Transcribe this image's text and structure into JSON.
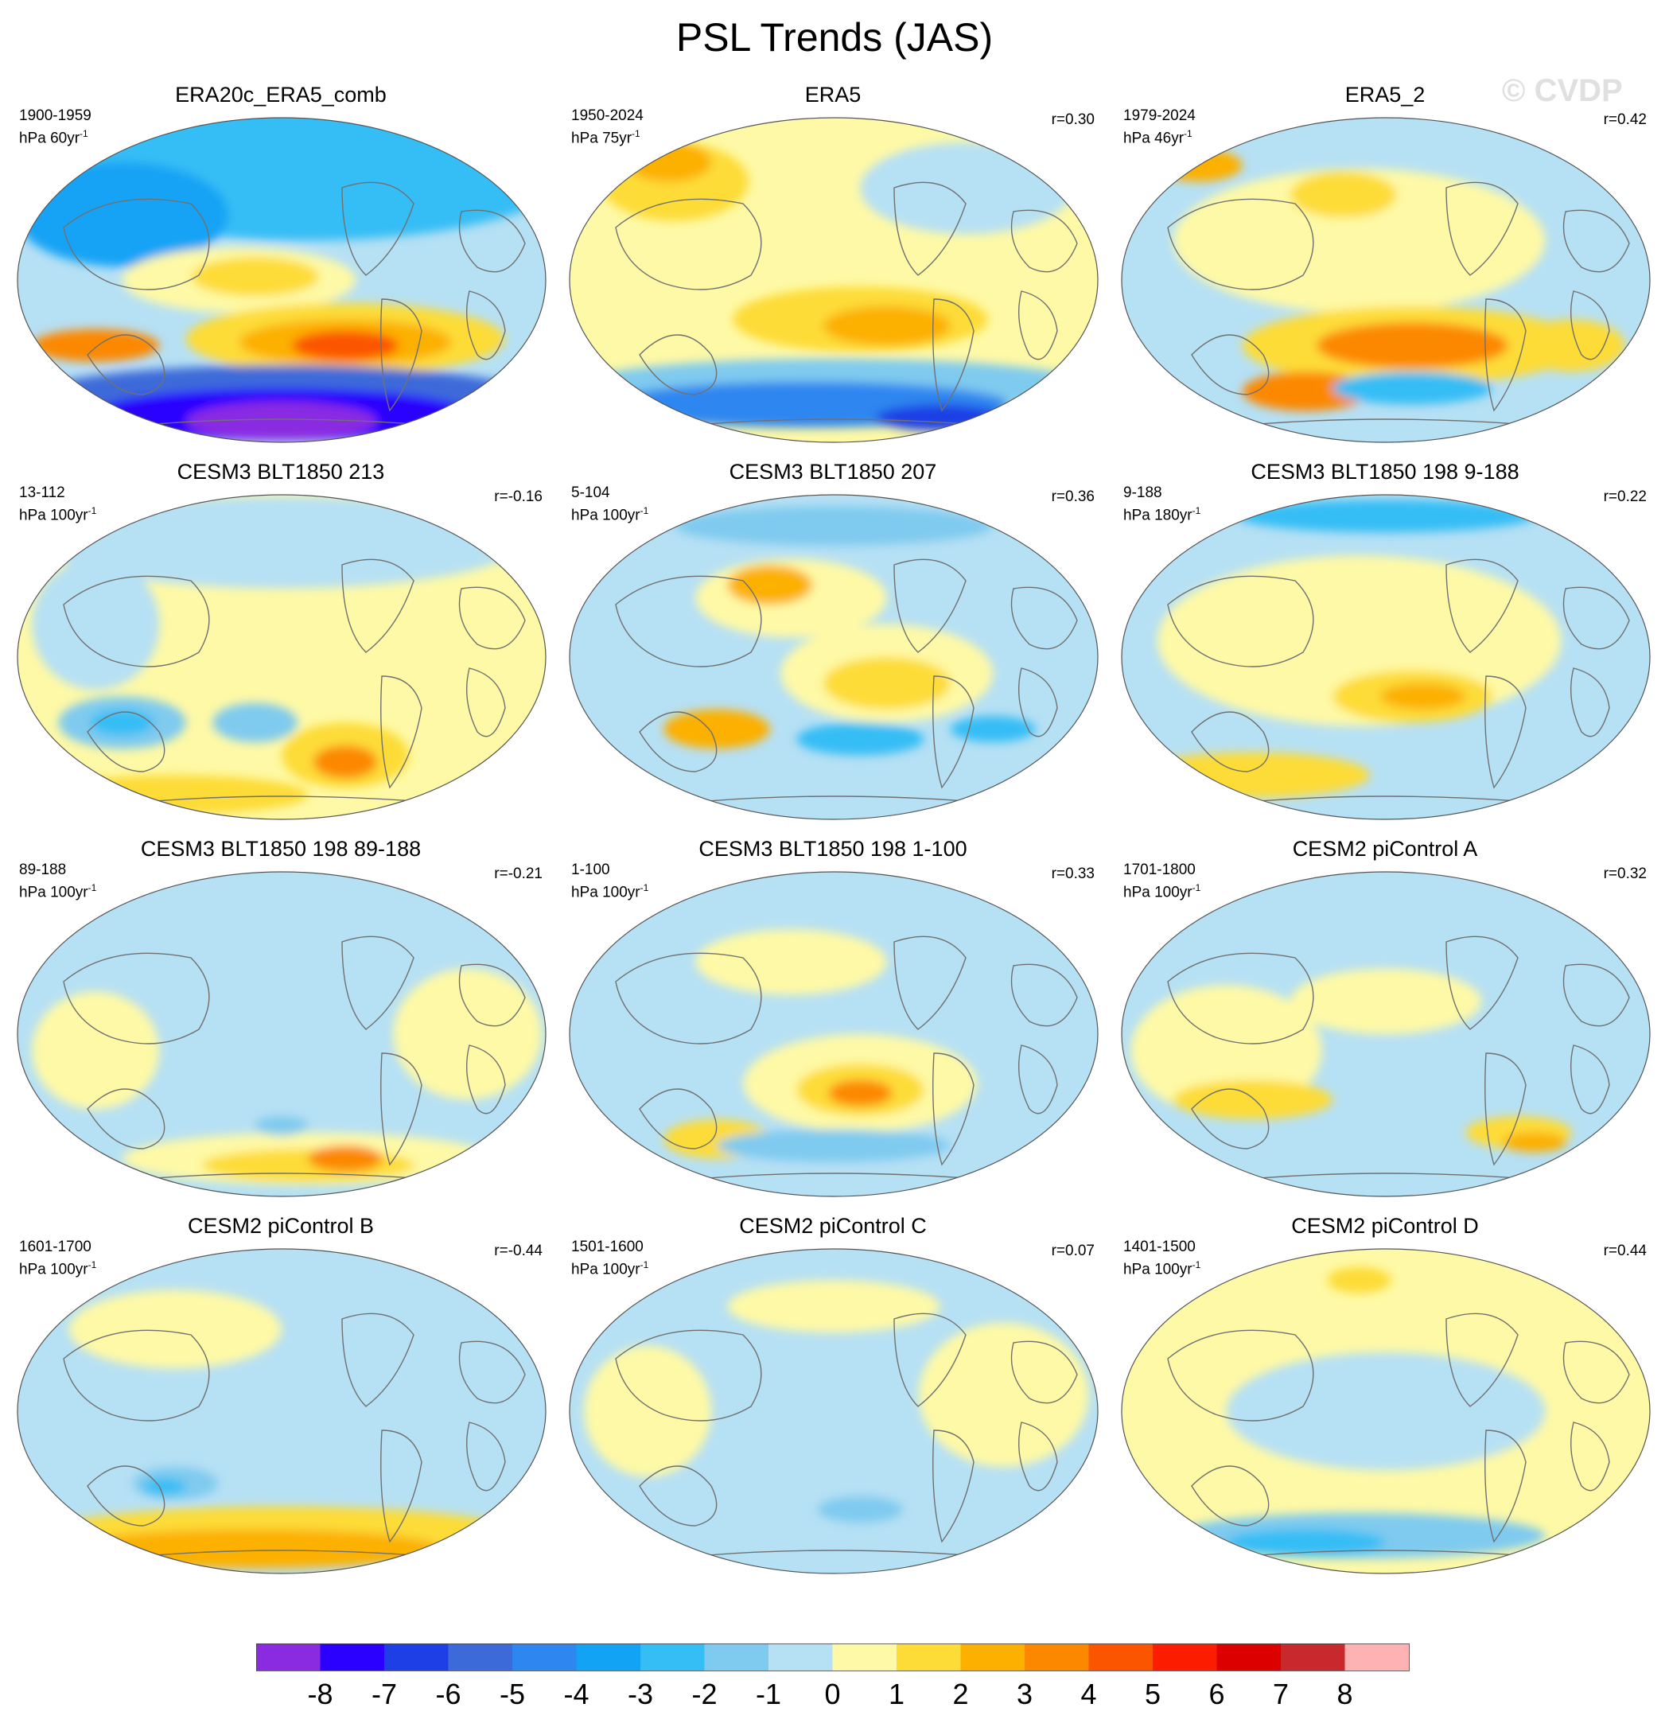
{
  "title": "PSL Trends (JAS)",
  "watermark": "© CVDP",
  "colors": {
    "map_edge": "#555555",
    "coast": "#707070"
  },
  "chart_data": {
    "type": "heatmap",
    "projection": "global map (ellipse), Pacific-centered",
    "colorbar": {
      "tick_labels": [
        "-8",
        "-7",
        "-6",
        "-5",
        "-4",
        "-3",
        "-2",
        "-1",
        "0",
        "1",
        "2",
        "3",
        "4",
        "5",
        "6",
        "7",
        "8"
      ],
      "colors": [
        "#8a2be2",
        "#2b00ff",
        "#1f3fe6",
        "#3c6ad9",
        "#2e86f0",
        "#12a3f5",
        "#35bdf5",
        "#7fcaef",
        "#b6e0f4",
        "#fef9a6",
        "#fddc38",
        "#fcb000",
        "#fc8800",
        "#fc5500",
        "#fc1c00",
        "#dc0000",
        "#c8292c",
        "#fdb3b4"
      ]
    },
    "panels": [
      {
        "name": "ERA20c_ERA5_comb",
        "period": "1900-1959",
        "units": "hPa 60yr",
        "units_sup": "-1",
        "r": "",
        "background": "#b6e0f4",
        "blobs": [
          {
            "lon": 50,
            "lat": 0.88,
            "rx": 0.38,
            "ry": 0.14,
            "color": "#8a2be2"
          },
          {
            "lon": 0.55,
            "lat": 0.84,
            "rx": 0.5,
            "ry": 0.22,
            "color": "#35bdf5"
          },
          {
            "lon": 0.2,
            "lat": 0.7,
            "rx": 0.2,
            "ry": 0.16,
            "color": "#12a3f5"
          },
          {
            "lon": 0.42,
            "lat": 0.5,
            "rx": 0.22,
            "ry": 0.1,
            "color": "#fef9a6"
          },
          {
            "lon": 0.45,
            "lat": 0.51,
            "rx": 0.12,
            "ry": 0.06,
            "color": "#fddc38"
          },
          {
            "lon": 0.62,
            "lat": 0.32,
            "rx": 0.3,
            "ry": 0.11,
            "color": "#fddc38"
          },
          {
            "lon": 0.62,
            "lat": 0.31,
            "rx": 0.2,
            "ry": 0.07,
            "color": "#fcb000"
          },
          {
            "lon": 0.62,
            "lat": 0.3,
            "rx": 0.1,
            "ry": 0.045,
            "color": "#fc5500"
          },
          {
            "lon": 0.15,
            "lat": 0.3,
            "rx": 0.12,
            "ry": 0.05,
            "color": "#fc8800"
          },
          {
            "lon": 0.5,
            "lat": 0.15,
            "rx": 0.46,
            "ry": 0.09,
            "color": "#3c6ad9"
          },
          {
            "lon": 0.5,
            "lat": 0.09,
            "rx": 0.36,
            "ry": 0.08,
            "color": "#2b00ff"
          },
          {
            "lon": 0.5,
            "lat": 0.07,
            "rx": 0.18,
            "ry": 0.06,
            "color": "#8a2be2"
          }
        ]
      },
      {
        "name": "ERA5",
        "period": "1950-2024",
        "units": "hPa 75yr",
        "units_sup": "-1",
        "r": "r=0.30",
        "background": "#fef9a6",
        "blobs": [
          {
            "lon": 0.2,
            "lat": 0.8,
            "rx": 0.14,
            "ry": 0.12,
            "color": "#fddc38"
          },
          {
            "lon": 0.19,
            "lat": 0.86,
            "rx": 0.08,
            "ry": 0.06,
            "color": "#fcb000"
          },
          {
            "lon": 0.75,
            "lat": 0.78,
            "rx": 0.2,
            "ry": 0.14,
            "color": "#b6e0f4"
          },
          {
            "lon": 0.55,
            "lat": 0.38,
            "rx": 0.24,
            "ry": 0.1,
            "color": "#fddc38"
          },
          {
            "lon": 0.6,
            "lat": 0.36,
            "rx": 0.12,
            "ry": 0.06,
            "color": "#fcb000"
          },
          {
            "lon": 0.5,
            "lat": 0.18,
            "rx": 0.48,
            "ry": 0.08,
            "color": "#7fcaef"
          },
          {
            "lon": 0.45,
            "lat": 0.12,
            "rx": 0.38,
            "ry": 0.07,
            "color": "#2e86f0"
          },
          {
            "lon": 0.7,
            "lat": 0.08,
            "rx": 0.12,
            "ry": 0.04,
            "color": "#1f3fe6"
          }
        ]
      },
      {
        "name": "ERA5_2",
        "period": "1979-2024",
        "units": "hPa 46yr",
        "units_sup": "-1",
        "r": "r=0.42",
        "background": "#b6e0f4",
        "blobs": [
          {
            "lon": 0.45,
            "lat": 0.62,
            "rx": 0.35,
            "ry": 0.22,
            "color": "#fef9a6"
          },
          {
            "lon": 0.42,
            "lat": 0.76,
            "rx": 0.1,
            "ry": 0.07,
            "color": "#fddc38"
          },
          {
            "lon": 0.55,
            "lat": 0.3,
            "rx": 0.32,
            "ry": 0.12,
            "color": "#fddc38"
          },
          {
            "lon": 0.55,
            "lat": 0.3,
            "rx": 0.18,
            "ry": 0.07,
            "color": "#fc8800"
          },
          {
            "lon": 0.15,
            "lat": 0.85,
            "rx": 0.08,
            "ry": 0.05,
            "color": "#fcb000"
          },
          {
            "lon": 0.85,
            "lat": 0.3,
            "rx": 0.1,
            "ry": 0.08,
            "color": "#fddc38"
          },
          {
            "lon": 0.35,
            "lat": 0.16,
            "rx": 0.12,
            "ry": 0.06,
            "color": "#fc8800"
          },
          {
            "lon": 0.55,
            "lat": 0.17,
            "rx": 0.15,
            "ry": 0.05,
            "color": "#35bdf5"
          }
        ]
      },
      {
        "name": "CESM3 BLT1850 213",
        "period": "13-112",
        "units": "hPa 100yr",
        "units_sup": "-1",
        "r": "r=-0.16",
        "background": "#fef9a6",
        "blobs": [
          {
            "lon": 0.5,
            "lat": 0.85,
            "rx": 0.45,
            "ry": 0.14,
            "color": "#b6e0f4"
          },
          {
            "lon": 0.15,
            "lat": 0.6,
            "rx": 0.12,
            "ry": 0.2,
            "color": "#b6e0f4"
          },
          {
            "lon": 0.2,
            "lat": 0.3,
            "rx": 0.12,
            "ry": 0.08,
            "color": "#7fcaef"
          },
          {
            "lon": 0.2,
            "lat": 0.3,
            "rx": 0.06,
            "ry": 0.04,
            "color": "#35bdf5"
          },
          {
            "lon": 0.45,
            "lat": 0.3,
            "rx": 0.08,
            "ry": 0.06,
            "color": "#7fcaef"
          },
          {
            "lon": 0.62,
            "lat": 0.2,
            "rx": 0.12,
            "ry": 0.1,
            "color": "#fddc38"
          },
          {
            "lon": 0.62,
            "lat": 0.18,
            "rx": 0.06,
            "ry": 0.05,
            "color": "#fc8800"
          },
          {
            "lon": 0.3,
            "lat": 0.08,
            "rx": 0.25,
            "ry": 0.06,
            "color": "#fddc38"
          }
        ]
      },
      {
        "name": "CESM3 BLT1850 207",
        "period": "5-104",
        "units": "hPa 100yr",
        "units_sup": "-1",
        "r": "r=0.36",
        "background": "#b6e0f4",
        "blobs": [
          {
            "lon": 0.42,
            "lat": 0.68,
            "rx": 0.18,
            "ry": 0.12,
            "color": "#fef9a6"
          },
          {
            "lon": 0.38,
            "lat": 0.72,
            "rx": 0.08,
            "ry": 0.06,
            "color": "#fcb000"
          },
          {
            "lon": 0.6,
            "lat": 0.45,
            "rx": 0.2,
            "ry": 0.15,
            "color": "#fef9a6"
          },
          {
            "lon": 0.6,
            "lat": 0.42,
            "rx": 0.12,
            "ry": 0.08,
            "color": "#fddc38"
          },
          {
            "lon": 0.28,
            "lat": 0.28,
            "rx": 0.1,
            "ry": 0.06,
            "color": "#fcb000"
          },
          {
            "lon": 0.55,
            "lat": 0.25,
            "rx": 0.12,
            "ry": 0.05,
            "color": "#35bdf5"
          },
          {
            "lon": 0.8,
            "lat": 0.28,
            "rx": 0.08,
            "ry": 0.04,
            "color": "#35bdf5"
          },
          {
            "lon": 0.5,
            "lat": 0.9,
            "rx": 0.3,
            "ry": 0.06,
            "color": "#7fcaef"
          }
        ]
      },
      {
        "name": "CESM3 BLT1850 198 9-188",
        "period": "9-188",
        "units": "hPa 180yr",
        "units_sup": "-1",
        "r": "r=0.22",
        "background": "#b6e0f4",
        "blobs": [
          {
            "lon": 0.45,
            "lat": 0.55,
            "rx": 0.38,
            "ry": 0.26,
            "color": "#fef9a6"
          },
          {
            "lon": 0.55,
            "lat": 0.38,
            "rx": 0.15,
            "ry": 0.08,
            "color": "#fddc38"
          },
          {
            "lon": 0.57,
            "lat": 0.38,
            "rx": 0.08,
            "ry": 0.04,
            "color": "#fcb000"
          },
          {
            "lon": 0.25,
            "lat": 0.14,
            "rx": 0.22,
            "ry": 0.07,
            "color": "#fddc38"
          },
          {
            "lon": 0.5,
            "lat": 0.93,
            "rx": 0.28,
            "ry": 0.05,
            "color": "#35bdf5"
          }
        ]
      },
      {
        "name": "CESM3 BLT1850 198 89-188",
        "period": "89-188",
        "units": "hPa 100yr",
        "units_sup": "-1",
        "r": "r=-0.21",
        "background": "#b6e0f4",
        "blobs": [
          {
            "lon": 0.15,
            "lat": 0.45,
            "rx": 0.12,
            "ry": 0.18,
            "color": "#fef9a6"
          },
          {
            "lon": 0.85,
            "lat": 0.5,
            "rx": 0.14,
            "ry": 0.2,
            "color": "#fef9a6"
          },
          {
            "lon": 0.55,
            "lat": 0.12,
            "rx": 0.35,
            "ry": 0.08,
            "color": "#fef9a6"
          },
          {
            "lon": 0.55,
            "lat": 0.1,
            "rx": 0.2,
            "ry": 0.05,
            "color": "#fddc38"
          },
          {
            "lon": 0.62,
            "lat": 0.12,
            "rx": 0.07,
            "ry": 0.04,
            "color": "#fc8800"
          },
          {
            "lon": 0.5,
            "lat": 0.22,
            "rx": 0.05,
            "ry": 0.03,
            "color": "#7fcaef"
          }
        ]
      },
      {
        "name": "CESM3 BLT1850 198 1-100",
        "period": "1-100",
        "units": "hPa 100yr",
        "units_sup": "-1",
        "r": "r=0.33",
        "background": "#b6e0f4",
        "blobs": [
          {
            "lon": 0.42,
            "lat": 0.72,
            "rx": 0.18,
            "ry": 0.1,
            "color": "#fef9a6"
          },
          {
            "lon": 0.55,
            "lat": 0.35,
            "rx": 0.22,
            "ry": 0.15,
            "color": "#fef9a6"
          },
          {
            "lon": 0.55,
            "lat": 0.33,
            "rx": 0.12,
            "ry": 0.08,
            "color": "#fddc38"
          },
          {
            "lon": 0.55,
            "lat": 0.32,
            "rx": 0.06,
            "ry": 0.04,
            "color": "#fc8800"
          },
          {
            "lon": 0.28,
            "lat": 0.18,
            "rx": 0.1,
            "ry": 0.06,
            "color": "#fddc38"
          },
          {
            "lon": 0.5,
            "lat": 0.16,
            "rx": 0.22,
            "ry": 0.05,
            "color": "#7fcaef"
          }
        ]
      },
      {
        "name": "CESM2 piControl A",
        "period": "1701-1800",
        "units": "hPa 100yr",
        "units_sup": "-1",
        "r": "r=0.32",
        "background": "#b6e0f4",
        "blobs": [
          {
            "lon": 0.2,
            "lat": 0.45,
            "rx": 0.18,
            "ry": 0.2,
            "color": "#fef9a6"
          },
          {
            "lon": 0.25,
            "lat": 0.3,
            "rx": 0.15,
            "ry": 0.06,
            "color": "#fddc38"
          },
          {
            "lon": 0.75,
            "lat": 0.2,
            "rx": 0.1,
            "ry": 0.05,
            "color": "#fddc38"
          },
          {
            "lon": 0.78,
            "lat": 0.17,
            "rx": 0.06,
            "ry": 0.03,
            "color": "#fcb000"
          },
          {
            "lon": 0.5,
            "lat": 0.6,
            "rx": 0.18,
            "ry": 0.1,
            "color": "#fef9a6"
          }
        ]
      },
      {
        "name": "CESM2 piControl B",
        "period": "1601-1700",
        "units": "hPa 100yr",
        "units_sup": "-1",
        "r": "r=-0.44",
        "background": "#b6e0f4",
        "blobs": [
          {
            "lon": 0.3,
            "lat": 0.75,
            "rx": 0.2,
            "ry": 0.12,
            "color": "#fef9a6"
          },
          {
            "lon": 0.5,
            "lat": 0.12,
            "rx": 0.46,
            "ry": 0.09,
            "color": "#fddc38"
          },
          {
            "lon": 0.45,
            "lat": 0.08,
            "rx": 0.35,
            "ry": 0.06,
            "color": "#fcb000"
          },
          {
            "lon": 0.3,
            "lat": 0.28,
            "rx": 0.08,
            "ry": 0.05,
            "color": "#7fcaef"
          },
          {
            "lon": 0.28,
            "lat": 0.27,
            "rx": 0.04,
            "ry": 0.025,
            "color": "#35bdf5"
          }
        ]
      },
      {
        "name": "CESM2 piControl C",
        "period": "1501-1600",
        "units": "hPa 100yr",
        "units_sup": "-1",
        "r": "r=0.07",
        "background": "#b6e0f4",
        "blobs": [
          {
            "lon": 0.15,
            "lat": 0.5,
            "rx": 0.12,
            "ry": 0.2,
            "color": "#fef9a6"
          },
          {
            "lon": 0.82,
            "lat": 0.55,
            "rx": 0.16,
            "ry": 0.22,
            "color": "#fef9a6"
          },
          {
            "lon": 0.5,
            "lat": 0.82,
            "rx": 0.2,
            "ry": 0.08,
            "color": "#fef9a6"
          },
          {
            "lon": 0.55,
            "lat": 0.2,
            "rx": 0.08,
            "ry": 0.04,
            "color": "#7fcaef"
          }
        ]
      },
      {
        "name": "CESM2 piControl D",
        "period": "1401-1500",
        "units": "hPa 100yr",
        "units_sup": "-1",
        "r": "r=0.44",
        "background": "#fef9a6",
        "blobs": [
          {
            "lon": 0.5,
            "lat": 0.5,
            "rx": 0.3,
            "ry": 0.18,
            "color": "#b6e0f4"
          },
          {
            "lon": 0.45,
            "lat": 0.12,
            "rx": 0.35,
            "ry": 0.07,
            "color": "#7fcaef"
          },
          {
            "lon": 0.35,
            "lat": 0.1,
            "rx": 0.15,
            "ry": 0.04,
            "color": "#35bdf5"
          },
          {
            "lon": 0.45,
            "lat": 0.9,
            "rx": 0.06,
            "ry": 0.04,
            "color": "#fddc38"
          }
        ]
      }
    ]
  }
}
